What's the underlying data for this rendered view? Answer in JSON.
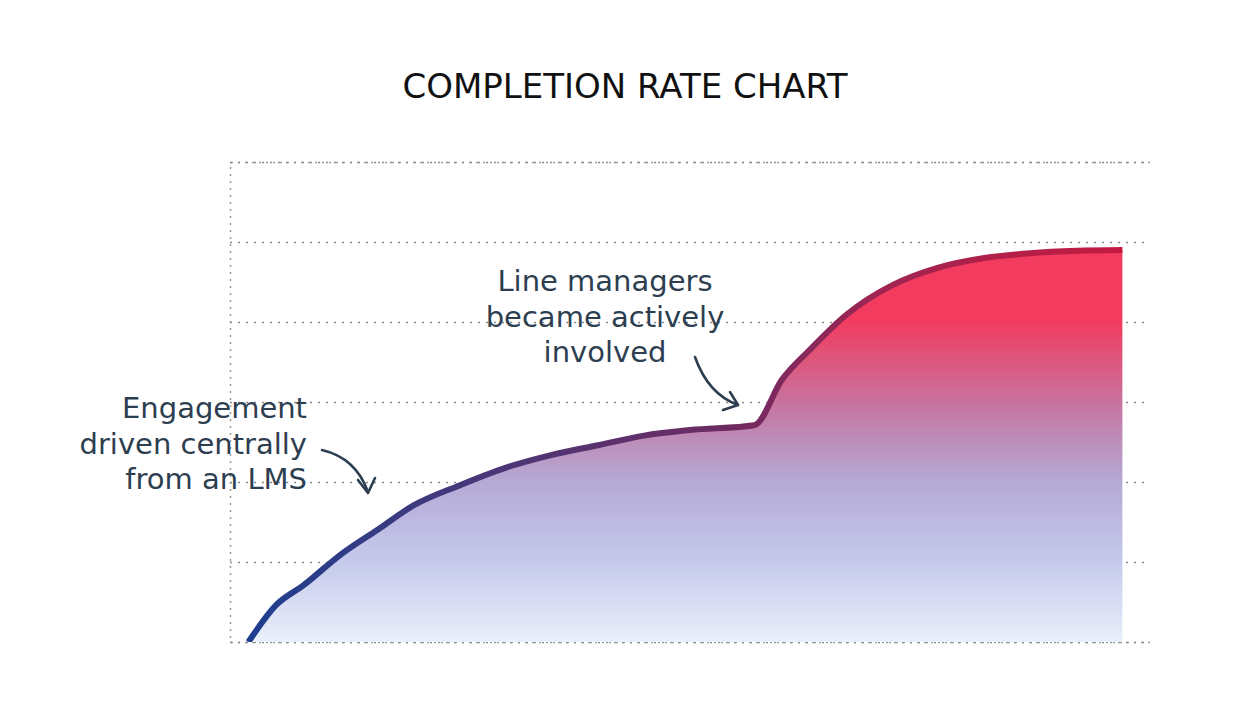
{
  "chart_data": {
    "type": "area",
    "title": "COMPLETION RATE CHART",
    "x": [
      2,
      5,
      8,
      12,
      16,
      20,
      25,
      30,
      35,
      40,
      45,
      50,
      57,
      60,
      63,
      67,
      72,
      77,
      82,
      87,
      92,
      97
    ],
    "values": [
      0,
      0.46,
      0.71,
      1.09,
      1.4,
      1.71,
      1.96,
      2.18,
      2.34,
      2.46,
      2.58,
      2.65,
      2.71,
      3.28,
      3.65,
      4.09,
      4.46,
      4.68,
      4.8,
      4.86,
      4.89,
      4.9
    ],
    "xlim": [
      0,
      100
    ],
    "ylim": [
      0,
      6
    ],
    "yticks": [
      0,
      1,
      2,
      3,
      4,
      5,
      6
    ],
    "grid": true,
    "tick_labels": false,
    "annotations": [
      {
        "text": [
          "Engagement",
          "driven centrally",
          "from an LMS"
        ]
      },
      {
        "text": [
          "Line managers",
          "became actively",
          "involved"
        ]
      }
    ]
  }
}
